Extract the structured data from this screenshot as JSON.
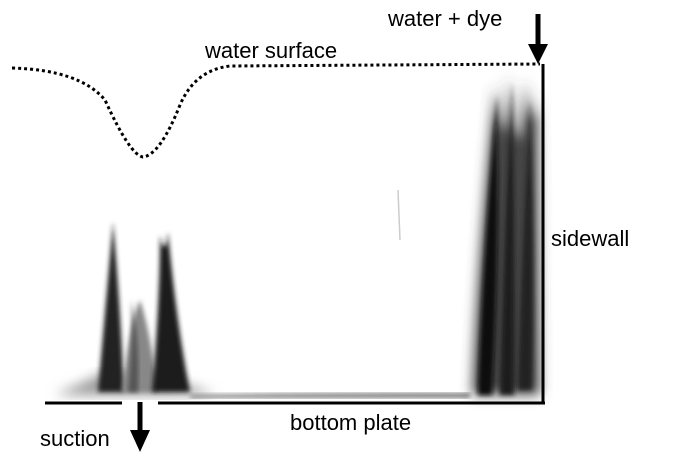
{
  "labels": {
    "water_dye": "water + dye",
    "water_surface": "water surface",
    "sidewall": "sidewall",
    "bottom_plate": "bottom plate",
    "suction": "suction"
  }
}
